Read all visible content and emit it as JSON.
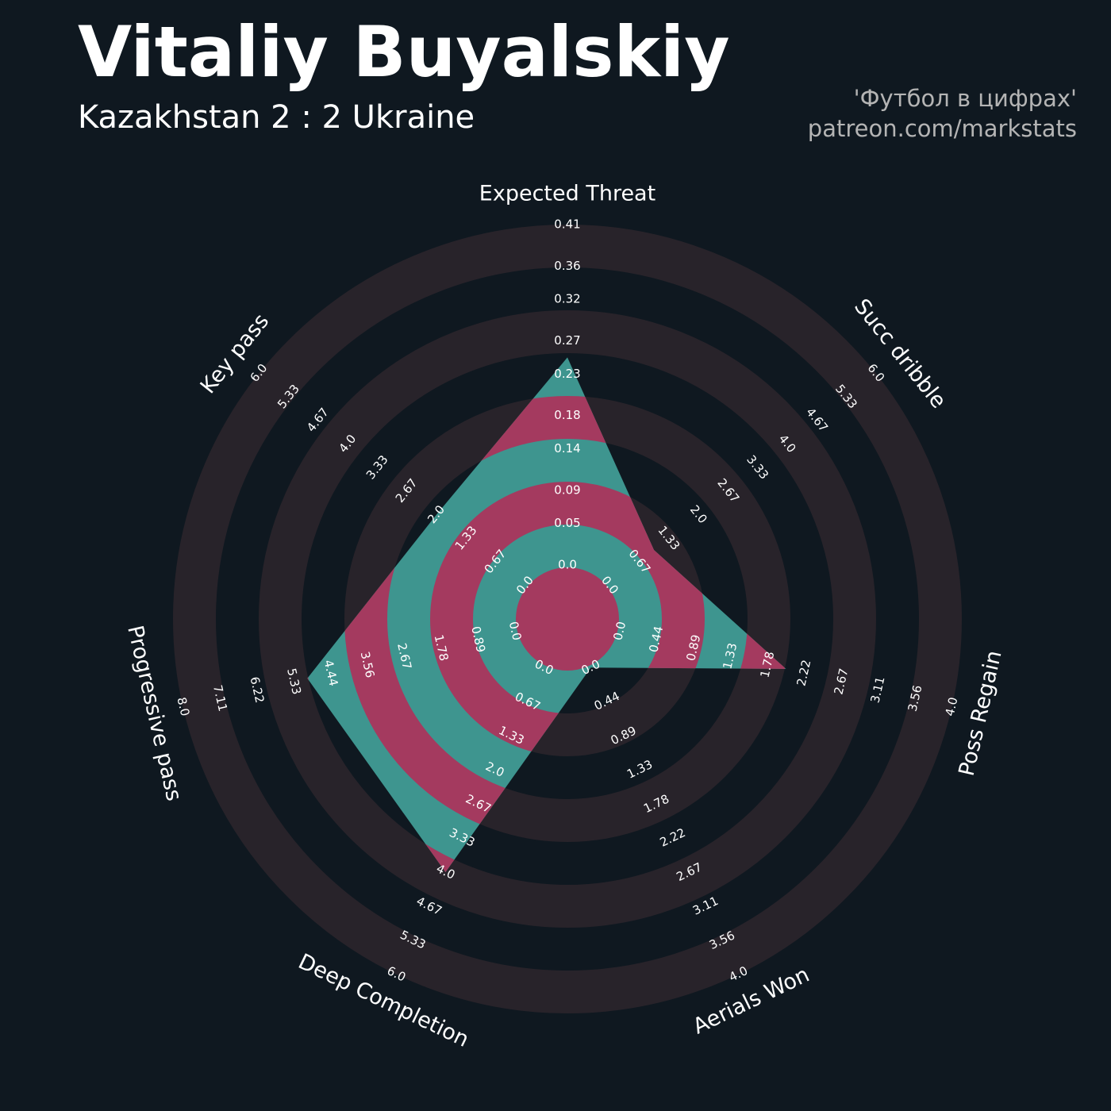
{
  "chart_data": {
    "type": "radar",
    "title": "Vitaliy Buyalskiy",
    "subtitle": "Kazakhstan 2 : 2 Ukraine",
    "annotations": [
      "'Футбол в цифрах'",
      "patreon.com/markstats"
    ],
    "categories": [
      "Expected Threat",
      "Succ dribble",
      "Poss Regain",
      "Aerials Won",
      "Deep Completion",
      "Progressive pass",
      "Key pass"
    ],
    "values": [
      0.25,
      1,
      2,
      0,
      4,
      5,
      2
    ],
    "axes_lims": [
      [
        0,
        0.41
      ],
      [
        0,
        6
      ],
      [
        0,
        4
      ],
      [
        0,
        4
      ],
      [
        0,
        6
      ],
      [
        0,
        8
      ],
      [
        0,
        6
      ]
    ],
    "axes_ticks": [
      [
        {
          "value": 0,
          "label": "0.0"
        },
        0.05,
        0.09,
        0.14,
        0.18,
        0.23,
        0.27,
        0.32,
        0.36,
        0.41
      ],
      [
        {
          "value": 0,
          "label": "0.0"
        },
        0.67,
        1.33,
        {
          "value": 2,
          "label": "2.0"
        },
        2.67,
        3.33,
        {
          "value": 4,
          "label": "4.0"
        },
        4.67,
        5.33,
        {
          "value": 6,
          "label": "6.0"
        }
      ],
      [
        {
          "value": 0,
          "label": "0.0"
        },
        0.44,
        0.89,
        1.33,
        1.78,
        2.22,
        2.67,
        3.11,
        3.56,
        {
          "value": 4,
          "label": "4.0"
        }
      ],
      [
        {
          "value": 0,
          "label": "0.0"
        },
        0.44,
        0.89,
        1.33,
        1.78,
        2.22,
        2.67,
        3.11,
        3.56,
        {
          "value": 4,
          "label": "4.0"
        }
      ],
      [
        {
          "value": 0,
          "label": "0.0"
        },
        0.67,
        1.33,
        {
          "value": 2,
          "label": "2.0"
        },
        2.67,
        3.33,
        {
          "value": 4,
          "label": "4.0"
        },
        4.67,
        5.33,
        {
          "value": 6,
          "label": "6.0"
        }
      ],
      [
        {
          "value": 0,
          "label": "0.0"
        },
        0.89,
        1.78,
        2.67,
        3.56,
        4.44,
        5.33,
        6.22,
        7.11,
        {
          "value": 8,
          "label": "8.0"
        }
      ],
      [
        {
          "value": 0,
          "label": "0.0"
        },
        0.67,
        1.33,
        {
          "value": 2,
          "label": "2.0"
        },
        2.67,
        3.33,
        {
          "value": 4,
          "label": "4.0"
        },
        4.67,
        5.33,
        {
          "value": 6,
          "label": "6.0"
        }
      ]
    ],
    "color": "#3e958f",
    "ring_color": "#a43a5f",
    "background_ring_color": "#28232a"
  }
}
